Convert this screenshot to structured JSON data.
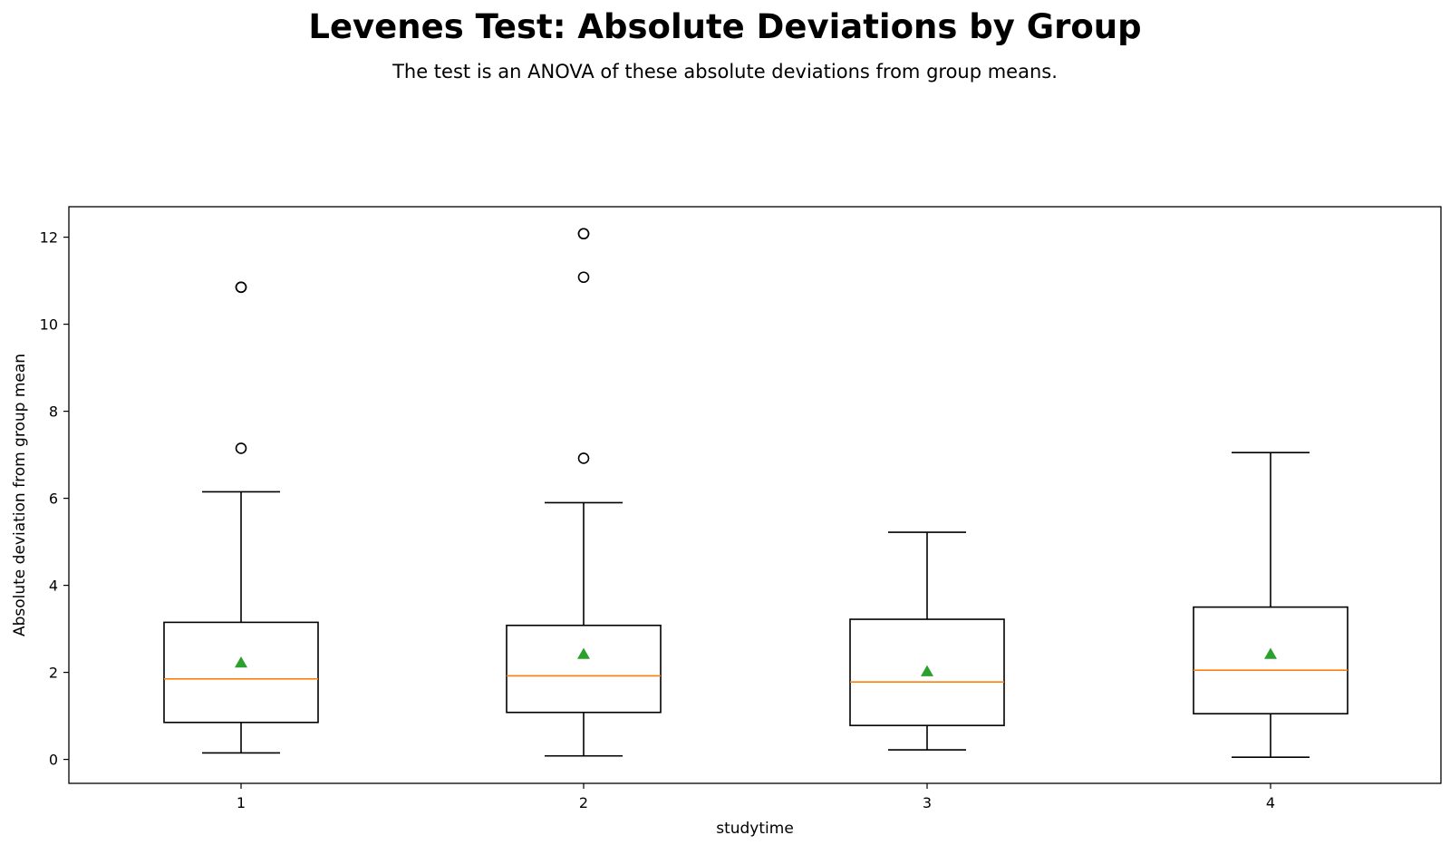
{
  "chart_data": {
    "type": "box",
    "title": "Levenes Test: Absolute Deviations by Group",
    "subtitle": "The test is an ANOVA of these absolute deviations from group means.",
    "xlabel": "studytime",
    "ylabel": "Absolute deviation from group mean",
    "ylim": [
      -0.55,
      12.7
    ],
    "yticks": [
      0,
      2,
      4,
      6,
      8,
      10,
      12
    ],
    "categories": [
      "1",
      "2",
      "3",
      "4"
    ],
    "boxes": [
      {
        "category": "1",
        "whisker_low": 0.15,
        "q1": 0.85,
        "median": 1.85,
        "mean": 2.22,
        "q3": 3.15,
        "whisker_high": 6.15,
        "outliers": [
          7.15,
          10.85,
          10.85
        ]
      },
      {
        "category": "2",
        "whisker_low": 0.08,
        "q1": 1.08,
        "median": 1.92,
        "mean": 2.42,
        "q3": 3.08,
        "whisker_high": 5.9,
        "outliers": [
          6.92,
          11.08,
          12.08,
          12.08
        ]
      },
      {
        "category": "3",
        "whisker_low": 0.22,
        "q1": 0.78,
        "median": 1.78,
        "mean": 2.02,
        "q3": 3.22,
        "whisker_high": 5.22,
        "outliers": []
      },
      {
        "category": "4",
        "whisker_low": 0.05,
        "q1": 1.05,
        "median": 2.05,
        "mean": 2.42,
        "q3": 3.5,
        "whisker_high": 7.05,
        "outliers": []
      }
    ],
    "colors": {
      "box": "#000000",
      "median": "#ff7f0e",
      "mean": "#2ca02c",
      "outlier": "#000000"
    },
    "grid": false,
    "legend": "none"
  }
}
